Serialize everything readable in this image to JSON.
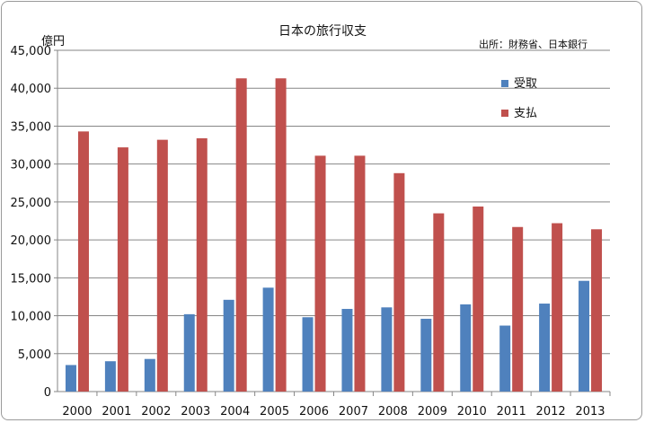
{
  "chart_data": {
    "type": "bar",
    "title": "日本の旅行収支",
    "ylabel": "億円",
    "source": "出所：財務省、日本銀行",
    "ylim": [
      0,
      45000
    ],
    "yticks": [
      "0",
      "5,000",
      "10,000",
      "15,000",
      "20,000",
      "25,000",
      "30,000",
      "35,000",
      "40,000",
      "45,000"
    ],
    "categories": [
      "2000",
      "2001",
      "2002",
      "2003",
      "2004",
      "2005",
      "2006",
      "2007",
      "2008",
      "2009",
      "2010",
      "2011",
      "2012",
      "2013"
    ],
    "series": [
      {
        "name": "受取",
        "color": "#4f81bd",
        "values": [
          3500,
          4000,
          4300,
          10200,
          12100,
          13700,
          9800,
          10900,
          11100,
          9600,
          11500,
          8700,
          11600,
          14600
        ]
      },
      {
        "name": "支払",
        "color": "#c0504d",
        "values": [
          34300,
          32200,
          33200,
          33400,
          41300,
          41300,
          31100,
          31100,
          28800,
          23500,
          24400,
          21700,
          22200,
          21400
        ]
      }
    ],
    "grid": true,
    "legend": "top-right"
  }
}
